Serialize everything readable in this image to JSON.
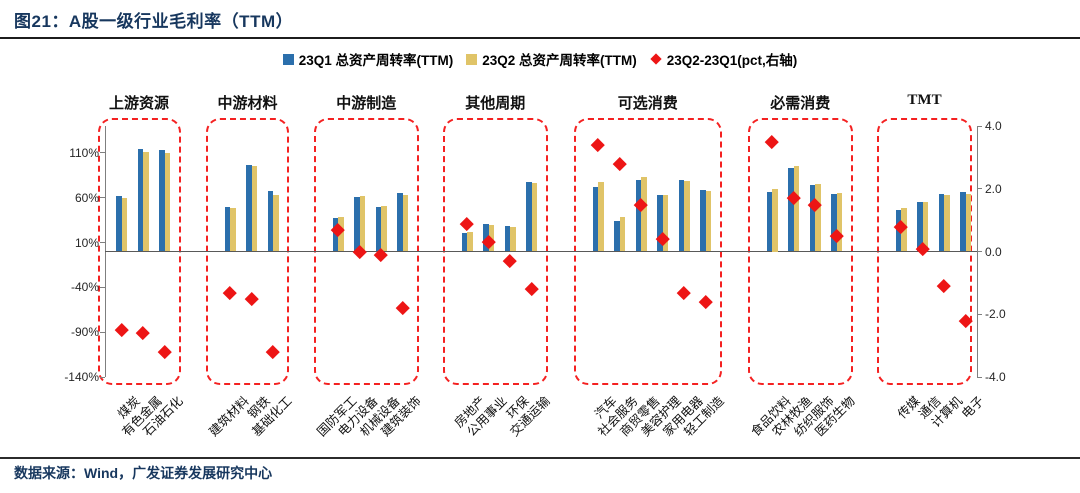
{
  "header": {
    "title": "图21：A股一级行业毛利率（TTM）"
  },
  "legend": [
    {
      "label": "23Q1 总资产周转率(TTM)",
      "marker": "square",
      "color": "#2B6FAC"
    },
    {
      "label": "23Q2 总资产周转率(TTM)",
      "marker": "square",
      "color": "#E0C468"
    },
    {
      "label": "23Q2-23Q1(pct,右轴)",
      "marker": "diamond",
      "color": "#ED1515"
    }
  ],
  "footer": {
    "source": "数据来源：Wind，广发证券发展研究中心"
  },
  "colors": {
    "q1_bar": "#2B6FAC",
    "q2_bar": "#E0C468",
    "diff_marker": "#ED1515",
    "box_border": "#F42121",
    "title_text": "#17375E",
    "axis_text": "#262626"
  },
  "chart_data": {
    "type": "bar",
    "title": "图21：A股一级行业毛利率（TTM）",
    "xlabel": "",
    "ylabel": "",
    "legend_position": "top",
    "grid": false,
    "series_names": [
      "23Q1 总资产周转率(TTM)",
      "23Q2 总资产周转率(TTM)",
      "23Q2-23Q1(pct,右轴)"
    ],
    "left_axis": {
      "unit": "%",
      "min": -140,
      "max": 140,
      "tick_values": [
        110,
        60,
        10,
        -40,
        -90,
        -140
      ],
      "tick_labels": [
        "110%",
        "60%",
        "10%",
        "-40%",
        "-90%",
        "-140%"
      ]
    },
    "right_axis": {
      "unit": "pct",
      "min": -4,
      "max": 4,
      "tick_values": [
        4,
        2,
        0,
        -2,
        -4
      ],
      "tick_labels": [
        "4.0",
        "2.0",
        "0.0",
        "-2.0",
        "-4.0"
      ]
    },
    "groups": [
      {
        "name": "上游资源",
        "items": [
          {
            "name": "煤炭",
            "q1": 62,
            "q2": 60,
            "diff": -2.5
          },
          {
            "name": "有色金属",
            "q1": 114,
            "q2": 111,
            "diff": -2.6
          },
          {
            "name": "石油石化",
            "q1": 113,
            "q2": 110,
            "diff": -3.2
          }
        ]
      },
      {
        "name": "中游材料",
        "items": [
          {
            "name": "建筑材料",
            "q1": 50,
            "q2": 49,
            "diff": -1.3
          },
          {
            "name": "钢铁",
            "q1": 96,
            "q2": 95,
            "diff": -1.5
          },
          {
            "name": "基础化工",
            "q1": 67,
            "q2": 63,
            "diff": -3.2
          }
        ]
      },
      {
        "name": "中游制造",
        "items": [
          {
            "name": "国防军工",
            "q1": 37,
            "q2": 38,
            "diff": 0.7
          },
          {
            "name": "电力设备",
            "q1": 61,
            "q2": 62,
            "diff": 0.0
          },
          {
            "name": "机械设备",
            "q1": 50,
            "q2": 51,
            "diff": -0.1
          },
          {
            "name": "建筑装饰",
            "q1": 65,
            "q2": 63,
            "diff": -1.8
          }
        ]
      },
      {
        "name": "其他周期",
        "items": [
          {
            "name": "房地产",
            "q1": 21,
            "q2": 22,
            "diff": 0.9
          },
          {
            "name": "公用事业",
            "q1": 31,
            "q2": 30,
            "diff": 0.3
          },
          {
            "name": "环保",
            "q1": 28,
            "q2": 27,
            "diff": -0.3
          },
          {
            "name": "交通运输",
            "q1": 77,
            "q2": 76,
            "diff": -1.2
          }
        ]
      },
      {
        "name": "可选消费",
        "items": [
          {
            "name": "汽车",
            "q1": 72,
            "q2": 77,
            "diff": 3.4
          },
          {
            "name": "社会服务",
            "q1": 34,
            "q2": 38,
            "diff": 2.8
          },
          {
            "name": "商贸零售",
            "q1": 80,
            "q2": 83,
            "diff": 1.5
          },
          {
            "name": "美容护理",
            "q1": 63,
            "q2": 63,
            "diff": 0.4
          },
          {
            "name": "家用电器",
            "q1": 80,
            "q2": 79,
            "diff": -1.3
          },
          {
            "name": "轻工制造",
            "q1": 69,
            "q2": 67,
            "diff": -1.6
          }
        ]
      },
      {
        "name": "必需消费",
        "items": [
          {
            "name": "食品饮料",
            "q1": 66,
            "q2": 70,
            "diff": 3.5
          },
          {
            "name": "农林牧渔",
            "q1": 93,
            "q2": 95,
            "diff": 1.7
          },
          {
            "name": "纺织服饰",
            "q1": 74,
            "q2": 75,
            "diff": 1.5
          },
          {
            "name": "医药生物",
            "q1": 64,
            "q2": 65,
            "diff": 0.5
          }
        ]
      },
      {
        "name": "TMT",
        "items": [
          {
            "name": "传媒",
            "q1": 46,
            "q2": 48,
            "diff": 0.8
          },
          {
            "name": "通信",
            "q1": 55,
            "q2": 55,
            "diff": 0.1
          },
          {
            "name": "计算机",
            "q1": 64,
            "q2": 63,
            "diff": -1.1
          },
          {
            "name": "电子",
            "q1": 66,
            "q2": 64,
            "diff": -2.2
          }
        ]
      }
    ]
  }
}
